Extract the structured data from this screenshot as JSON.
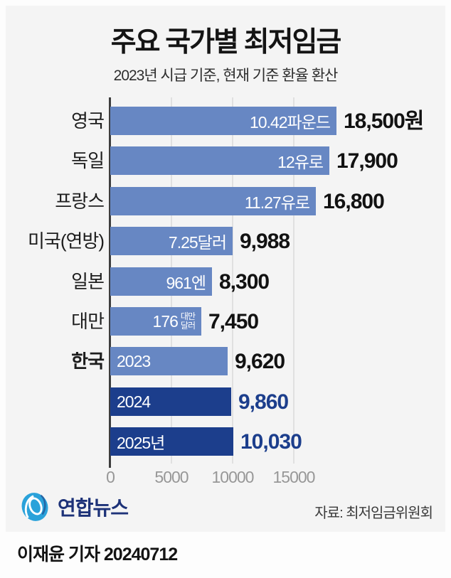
{
  "page": {
    "title": "주요 국가별 최저임금",
    "subtitle": "2023년 시급 기준, 현재 기준 환율 환산"
  },
  "chart_data": {
    "type": "bar",
    "orientation": "horizontal",
    "title": "주요 국가별 최저임금",
    "subtitle": "2023년 시급 기준, 현재 기준 환율 환산",
    "unit": "원 (KRW)",
    "xlim": [
      0,
      18600
    ],
    "grid": true,
    "x_ticks": [
      {
        "value": 0,
        "label": "0"
      },
      {
        "value": 5000,
        "label": "5000"
      },
      {
        "value": 10000,
        "label": "10000"
      },
      {
        "value": 15000,
        "label": "15000"
      }
    ],
    "colors": {
      "bar_default": "#6787c3",
      "bar_highlight": "#1c3e8c",
      "value_text_default": "#121212",
      "value_text_highlight": "#1c3e8c",
      "bar_inner_text": "#ffffff",
      "axis_line": "#3d3d3d",
      "grid_line": "#e0e0e0",
      "tick_text": "#979797"
    },
    "rows": [
      {
        "label": "영국",
        "label_bold": false,
        "value": 18500,
        "value_label": "18,500원",
        "bar_text": "10.42파운드",
        "bar_text_stack": null,
        "bar_text_align": "right",
        "highlight": false
      },
      {
        "label": "독일",
        "label_bold": false,
        "value": 17900,
        "value_label": "17,900",
        "bar_text": "12유로",
        "bar_text_stack": null,
        "bar_text_align": "right",
        "highlight": false
      },
      {
        "label": "프랑스",
        "label_bold": false,
        "value": 16800,
        "value_label": "16,800",
        "bar_text": "11.27유로",
        "bar_text_stack": null,
        "bar_text_align": "right",
        "highlight": false
      },
      {
        "label": "미국(연방)",
        "label_bold": false,
        "value": 9988,
        "value_label": "9,988",
        "bar_text": "7.25달러",
        "bar_text_stack": null,
        "bar_text_align": "right",
        "highlight": false
      },
      {
        "label": "일본",
        "label_bold": false,
        "value": 8300,
        "value_label": "8,300",
        "bar_text": "961엔",
        "bar_text_stack": null,
        "bar_text_align": "right",
        "highlight": false
      },
      {
        "label": "대만",
        "label_bold": false,
        "value": 7450,
        "value_label": "7,450",
        "bar_text": "176",
        "bar_text_stack": [
          "대만",
          "달러"
        ],
        "bar_text_align": "right",
        "highlight": false
      },
      {
        "label": "한국",
        "label_bold": true,
        "value": 9620,
        "value_label": "9,620",
        "bar_text": "2023",
        "bar_text_stack": null,
        "bar_text_align": "left",
        "highlight": false
      },
      {
        "label": "",
        "label_bold": false,
        "value": 9860,
        "value_label": "9,860",
        "bar_text": "2024",
        "bar_text_stack": null,
        "bar_text_align": "left",
        "highlight": true
      },
      {
        "label": "",
        "label_bold": false,
        "value": 10030,
        "value_label": "10,030",
        "bar_text": "2025년",
        "bar_text_stack": null,
        "bar_text_align": "left",
        "highlight": true
      }
    ]
  },
  "footer": {
    "logo_text": "연합뉴스",
    "source": "자료: 최저임금위원회"
  },
  "byline": "이재윤 기자 20240712"
}
